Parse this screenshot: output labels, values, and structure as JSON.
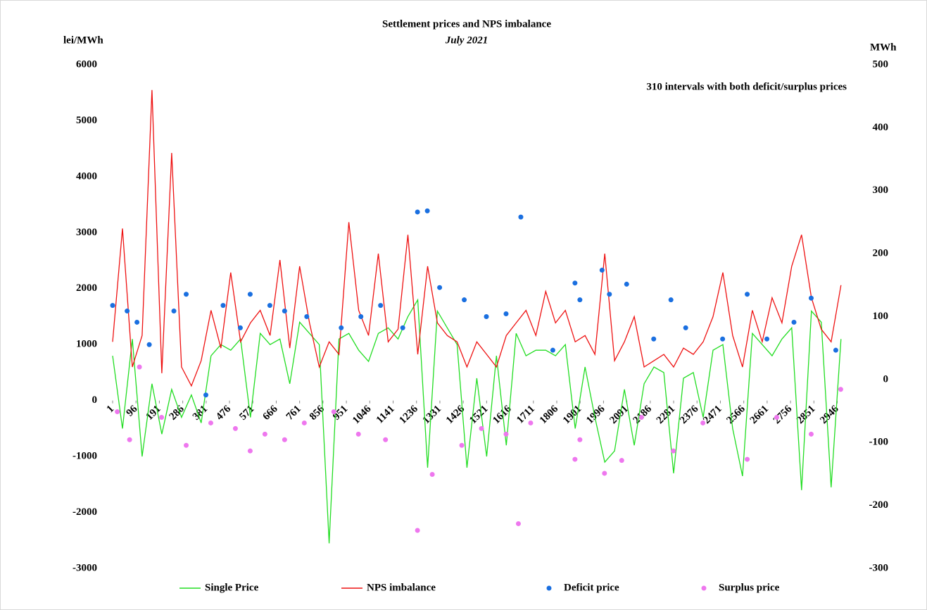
{
  "chart_data": {
    "type": "line",
    "title": "Settlement prices and NPS imbalance",
    "subtitle": "July 2021",
    "ylabel": "lei/MWh",
    "y2label": "MWh",
    "annotation": "310 intervals with both deficit/surplus prices",
    "xlim": [
      1,
      2976
    ],
    "xticks": [
      1,
      96,
      191,
      286,
      381,
      476,
      571,
      666,
      761,
      856,
      951,
      1046,
      1141,
      1236,
      1331,
      1426,
      1521,
      1616,
      1711,
      1806,
      1901,
      1996,
      2091,
      2186,
      2281,
      2376,
      2471,
      2566,
      2661,
      2756,
      2851,
      2946
    ],
    "ylim": [
      -3000,
      6000
    ],
    "yticks": [
      -3000,
      -2000,
      -1000,
      0,
      1000,
      2000,
      3000,
      4000,
      5000,
      6000
    ],
    "y2lim": [
      -300,
      500
    ],
    "y2ticks": [
      -300,
      -200,
      -100,
      0,
      100,
      200,
      300,
      400,
      500
    ],
    "grid": false,
    "legend": "bottom",
    "x": [
      1,
      41,
      81,
      121,
      161,
      201,
      241,
      281,
      321,
      361,
      401,
      441,
      481,
      521,
      561,
      601,
      641,
      681,
      721,
      761,
      801,
      841,
      881,
      921,
      961,
      1001,
      1041,
      1081,
      1121,
      1161,
      1201,
      1241,
      1281,
      1321,
      1361,
      1401,
      1441,
      1481,
      1521,
      1561,
      1601,
      1641,
      1681,
      1721,
      1761,
      1801,
      1841,
      1881,
      1921,
      1961,
      2001,
      2041,
      2081,
      2121,
      2161,
      2201,
      2241,
      2281,
      2321,
      2361,
      2401,
      2441,
      2481,
      2521,
      2561,
      2601,
      2641,
      2681,
      2721,
      2761,
      2801,
      2841,
      2881,
      2921,
      2961
    ],
    "series": [
      {
        "name": "Single Price",
        "color": "#22dd22",
        "kind": "line",
        "axis": "y",
        "values": [
          800,
          -500,
          1100,
          -1000,
          300,
          -600,
          200,
          -300,
          100,
          -400,
          800,
          1000,
          900,
          1100,
          -300,
          1200,
          1000,
          1100,
          300,
          1400,
          1200,
          1000,
          -2550,
          1100,
          1200,
          900,
          700,
          1200,
          1300,
          1100,
          1500,
          1800,
          -1200,
          1600,
          1300,
          1000,
          -1200,
          400,
          -1000,
          800,
          -800,
          1200,
          800,
          900,
          900,
          800,
          1000,
          -500,
          600,
          -300,
          -1100,
          -900,
          200,
          -800,
          300,
          600,
          500,
          -1300,
          400,
          500,
          -300,
          900,
          1000,
          -500,
          -1350,
          1200,
          1000,
          800,
          1100,
          1300,
          -1600,
          1600,
          1400,
          -1550,
          1100
        ]
      },
      {
        "name": "NPS imbalance",
        "color": "#ee1111",
        "kind": "line",
        "axis": "y2",
        "values": [
          60,
          240,
          20,
          70,
          460,
          10,
          360,
          20,
          -10,
          30,
          110,
          50,
          170,
          60,
          90,
          110,
          70,
          190,
          50,
          180,
          90,
          20,
          60,
          40,
          250,
          110,
          70,
          200,
          60,
          80,
          230,
          40,
          180,
          90,
          70,
          60,
          20,
          60,
          40,
          20,
          70,
          90,
          110,
          70,
          140,
          90,
          110,
          60,
          70,
          40,
          200,
          30,
          60,
          100,
          20,
          30,
          40,
          20,
          50,
          40,
          60,
          100,
          170,
          70,
          20,
          110,
          60,
          130,
          90,
          180,
          230,
          130,
          80,
          60,
          150
        ]
      },
      {
        "name": "Deficit price",
        "color": "#1a6fe0",
        "kind": "scatter",
        "axis": "y",
        "x": [
          1,
          60,
          100,
          150,
          250,
          300,
          380,
          450,
          520,
          560,
          640,
          700,
          790,
          930,
          1010,
          1090,
          1180,
          1240,
          1280,
          1330,
          1430,
          1520,
          1600,
          1660,
          1790,
          1880,
          1900,
          1990,
          2020,
          2090,
          2200,
          2270,
          2330,
          2480,
          2580,
          2660,
          2770,
          2840,
          2940
        ],
        "values": [
          1700,
          1600,
          1400,
          1000,
          1600,
          1900,
          100,
          1700,
          1300,
          1900,
          1700,
          1600,
          1500,
          1300,
          1500,
          1700,
          1300,
          3370,
          3390,
          2020,
          1800,
          1500,
          1550,
          3280,
          900,
          2100,
          1800,
          2330,
          1900,
          2080,
          1100,
          1800,
          1300,
          1100,
          1900,
          1100,
          1400,
          1830,
          900
        ]
      },
      {
        "name": "Surplus price",
        "color": "#ee77ee",
        "kind": "scatter",
        "axis": "y",
        "x": [
          20,
          70,
          110,
          200,
          300,
          400,
          500,
          560,
          620,
          700,
          780,
          900,
          1000,
          1110,
          1240,
          1300,
          1420,
          1500,
          1600,
          1650,
          1700,
          1880,
          1900,
          2000,
          2070,
          2150,
          2280,
          2400,
          2580,
          2700,
          2840,
          2960
        ],
        "values": [
          -200,
          -700,
          600,
          -300,
          -800,
          -400,
          -500,
          -900,
          -600,
          -700,
          -400,
          -200,
          -600,
          -700,
          -2320,
          -1320,
          -800,
          -500,
          -600,
          -2200,
          -400,
          -1050,
          -700,
          -1300,
          -1070,
          -300,
          -900,
          -400,
          -1050,
          -300,
          -600,
          200
        ]
      }
    ]
  }
}
